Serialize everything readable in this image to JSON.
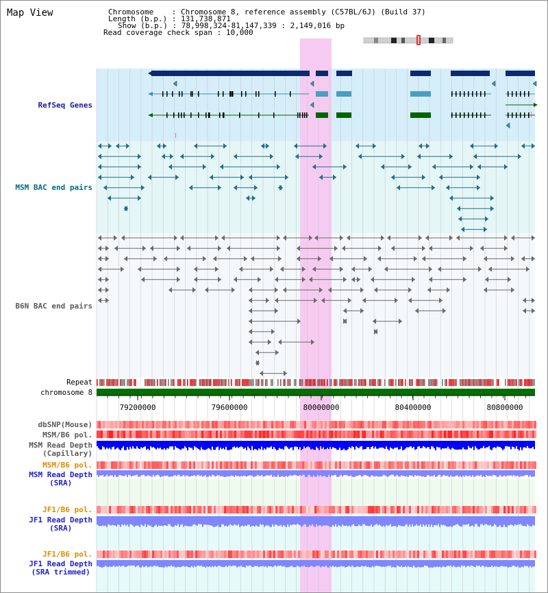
{
  "view_title": "Map View",
  "info": {
    "chromosome_label": "Chromosome",
    "chromosome_value": "Chromosome 8, reference assembly (C57BL/6J) (Build 37)",
    "length_label": "Length (b.p.)",
    "length_value": "131,738,871",
    "show_label": "Show (b.p.)",
    "show_value": "78,998,324-81,147,339 : 2,149,016 bp",
    "coverage_label": "Read coverage check span",
    "coverage_value": "10,000"
  },
  "tracks": {
    "refseq_genes": "RefSeq Genes",
    "msm_bac": "MSM BAC end pairs",
    "b6n_bac": "B6N BAC end pairs",
    "repeat": "Repeat",
    "chromosome": "chromosome 8",
    "dbsnp": "dbSNP(Mouse)",
    "msm_b6_pol_1": "MSM/B6 pol.",
    "msm_read_depth_cap_1": "MSM Read Depth",
    "msm_read_depth_cap_2": "(Capillary)",
    "msm_b6_pol_2": "MSM/B6 pol.",
    "msm_read_depth_sra_1": "MSM Read Depth",
    "msm_read_depth_sra_2": "(SRA)",
    "jf1_b6_pol_1": "JF1/B6 pol.",
    "jf1_read_depth_sra_1": "JF1 Read Depth",
    "jf1_read_depth_sra_2": "(SRA)",
    "jf1_b6_pol_2": "JF1/B6 pol.",
    "jf1_read_depth_trim_1": "JF1 Read Depth",
    "jf1_read_depth_trim_2": "(SRA trimmed)"
  },
  "axis": {
    "ticks": [
      "79200000",
      "79600000",
      "80000000",
      "80400000",
      "80800000"
    ],
    "tick_values": [
      79200000,
      79600000,
      80000000,
      80400000,
      80800000
    ]
  },
  "colors": {
    "highlight": "#f7c8f0",
    "refseq_bg": "#d6eef9",
    "msm_bg": "#e4f6f6",
    "b6n_bg": "#f4f8fb",
    "gene_navy": "#0c2a6c",
    "gene_teal": "#3b8fb0",
    "gene_green": "#006400",
    "msm_bac": "#1f6e8c",
    "b6n_bac": "#6a6a6a",
    "chrom_green": "#007000",
    "depth_blue": "#0000ff",
    "depth_light_blue": "#7f86ff",
    "label_navy": "#1a1a9a",
    "label_teal": "#006b82",
    "label_gray": "#5a5a5a",
    "label_orange": "#e08a00",
    "label_blue": "#2020d0"
  }
}
